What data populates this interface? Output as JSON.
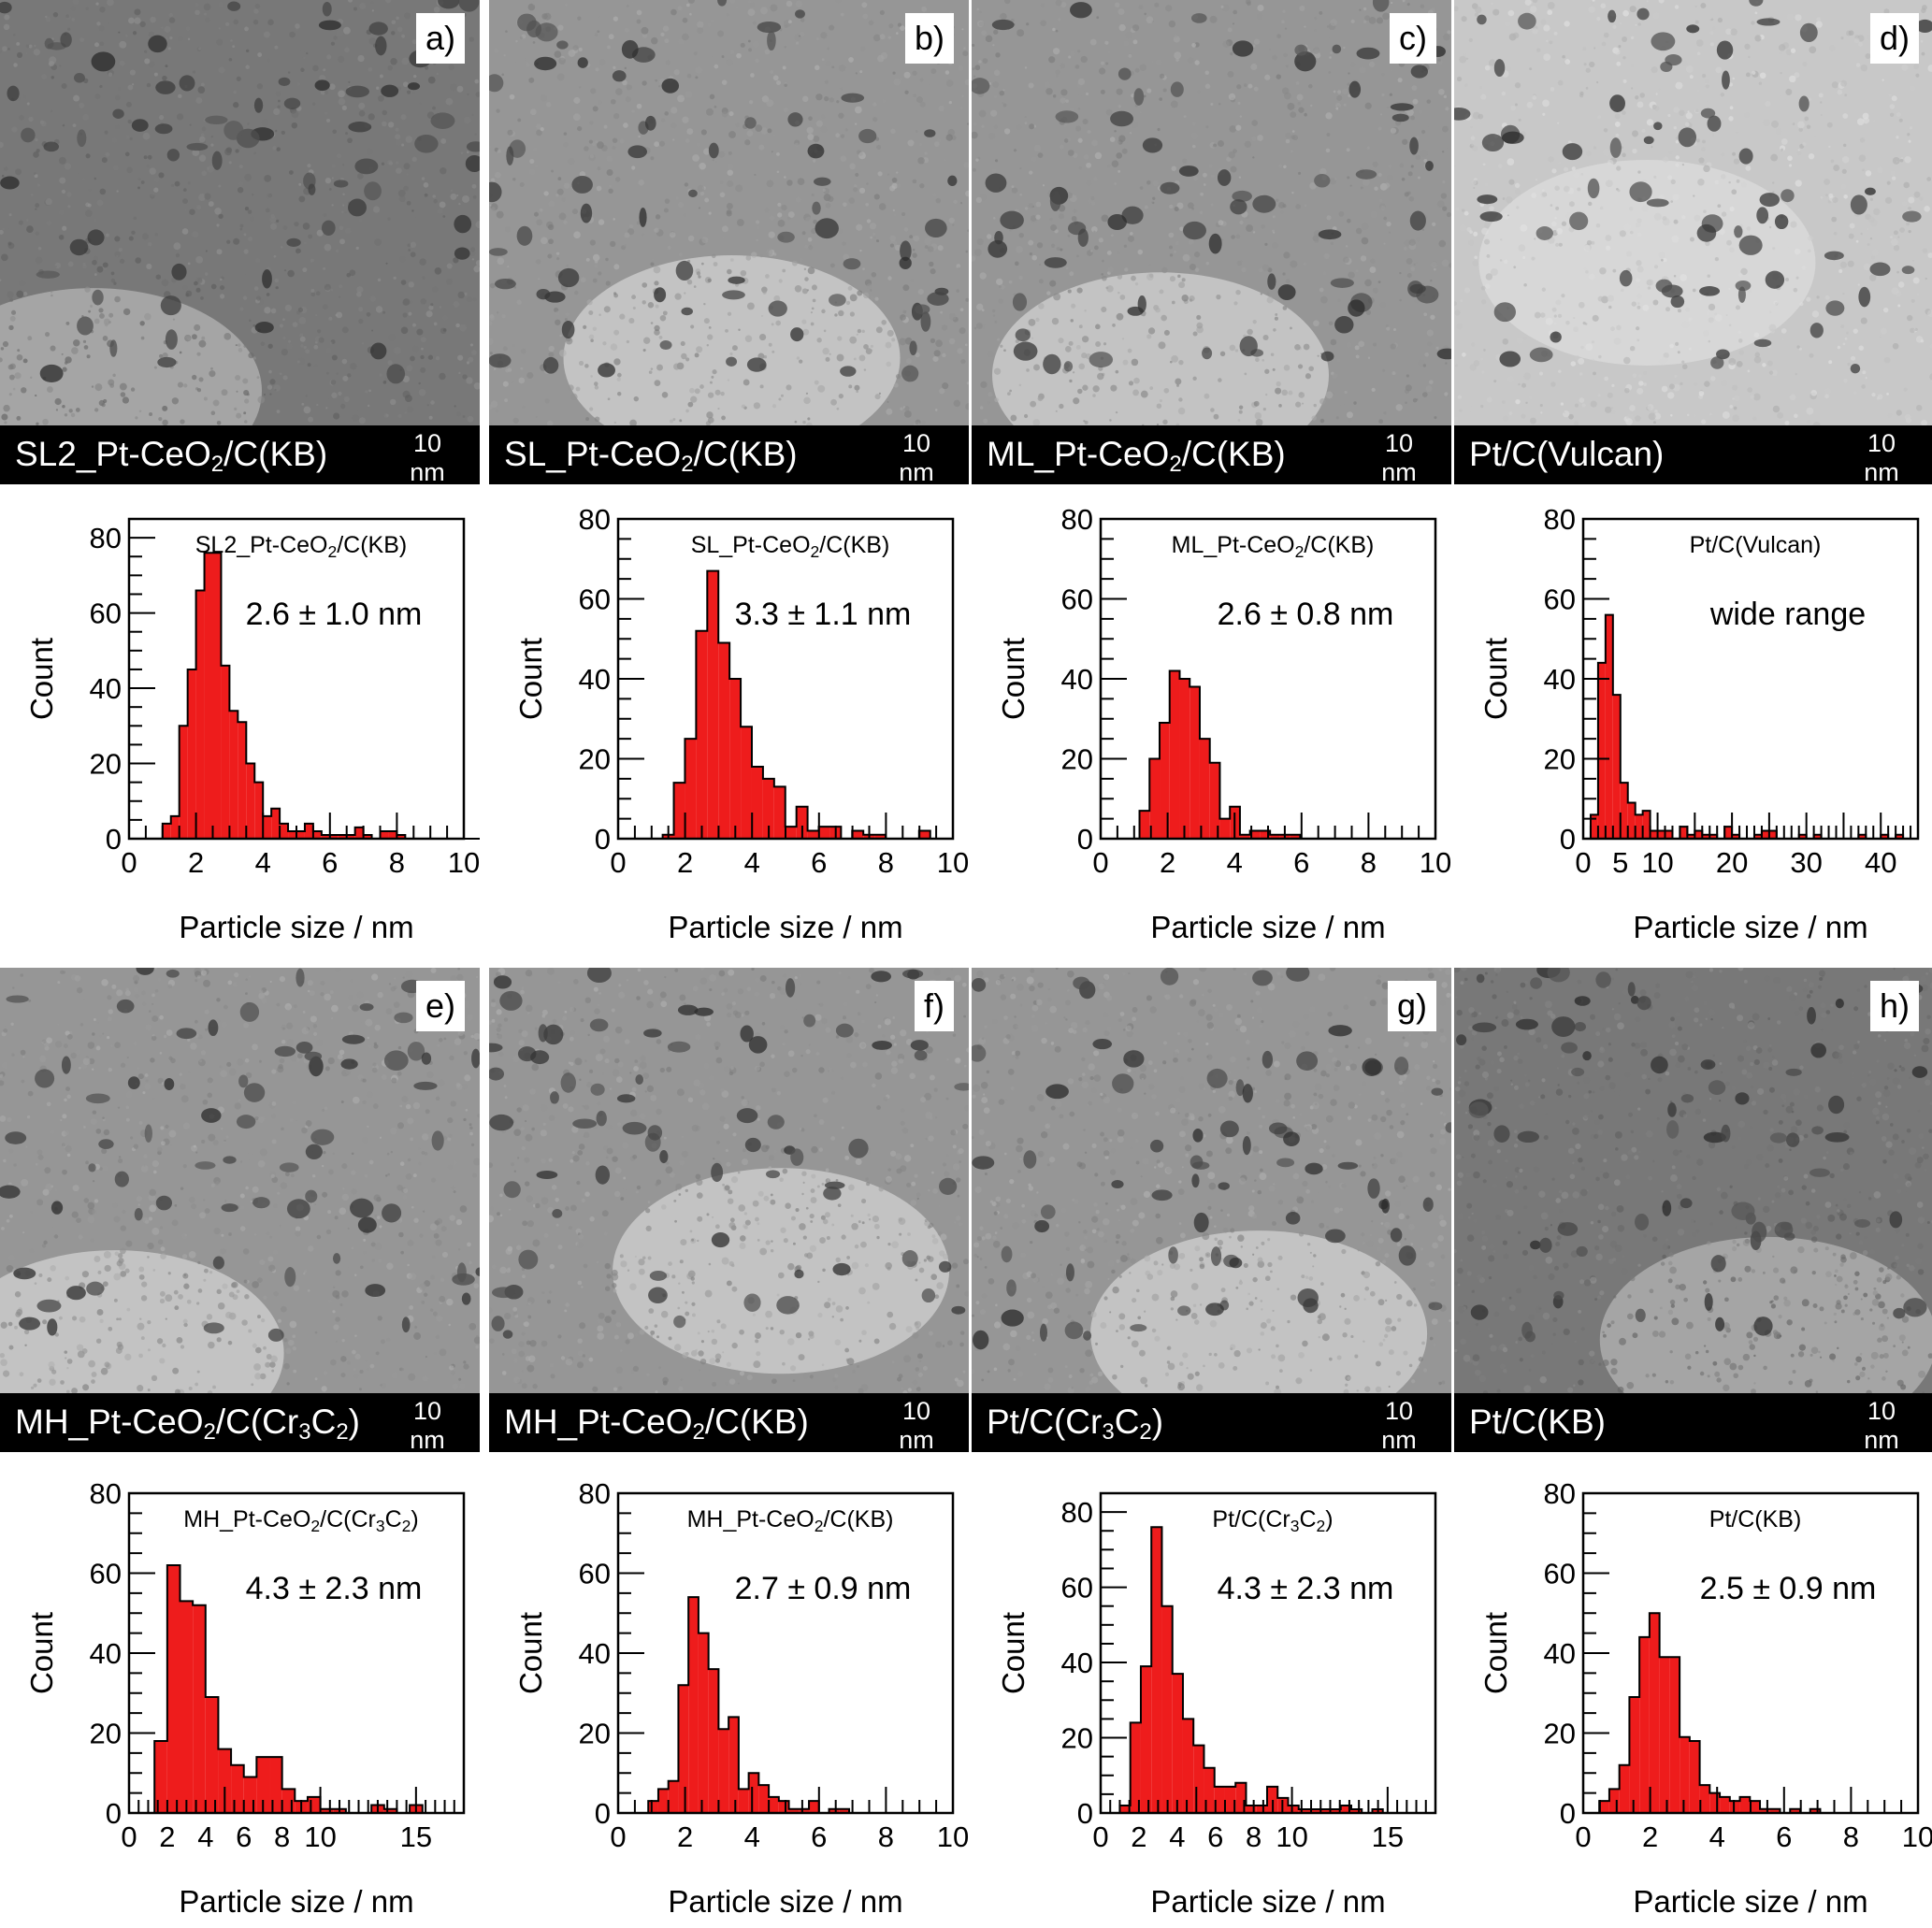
{
  "tem_panels": [
    {
      "letter": "a)",
      "label": [
        {
          "t": "SL2_Pt-CeO"
        },
        {
          "sub": "2"
        },
        {
          "t": "/C(KB)"
        }
      ],
      "scale": "10 nm",
      "tone": "dark"
    },
    {
      "letter": "b)",
      "label": [
        {
          "t": "SL_Pt-CeO"
        },
        {
          "sub": "2"
        },
        {
          "t": "/C(KB)"
        }
      ],
      "scale": "10 nm",
      "tone": "mid"
    },
    {
      "letter": "c)",
      "label": [
        {
          "t": "ML_Pt-CeO"
        },
        {
          "sub": "2"
        },
        {
          "t": "/C(KB)"
        }
      ],
      "scale": "10 nm",
      "tone": "mid"
    },
    {
      "letter": "d)",
      "label": [
        {
          "t": "Pt/C(Vulcan)"
        }
      ],
      "scale": "10 nm",
      "tone": "light"
    },
    {
      "letter": "e)",
      "label": [
        {
          "t": "MH_Pt-CeO"
        },
        {
          "sub": "2"
        },
        {
          "t": "/C(Cr"
        },
        {
          "sub": "3"
        },
        {
          "t": "C"
        },
        {
          "sub": "2"
        },
        {
          "t": ")"
        }
      ],
      "scale": "10 nm",
      "tone": "mid"
    },
    {
      "letter": "f)",
      "label": [
        {
          "t": "MH_Pt-CeO"
        },
        {
          "sub": "2"
        },
        {
          "t": "/C(KB)"
        }
      ],
      "scale": "10 nm",
      "tone": "mid"
    },
    {
      "letter": "g)",
      "label": [
        {
          "t": "Pt/C(Cr"
        },
        {
          "sub": "3"
        },
        {
          "t": "C"
        },
        {
          "sub": "2"
        },
        {
          "t": ")"
        }
      ],
      "scale": "10 nm",
      "tone": "mid"
    },
    {
      "letter": "h)",
      "label": [
        {
          "t": "Pt/C(KB)"
        }
      ],
      "scale": "10 nm",
      "tone": "dark"
    }
  ],
  "colors": {
    "bar_fill": "#ee1c1c",
    "bar_edge": "#000000",
    "tem_bar": "#000000"
  },
  "chart_data": [
    {
      "type": "bar",
      "title": [
        {
          "t": "SL2_Pt-CeO"
        },
        {
          "sub": "2"
        },
        {
          "t": "/C(KB)"
        }
      ],
      "annotation": "2.6 ± 1.0 nm",
      "xlabel": "Particle size / nm",
      "ylabel": "Count",
      "xlim": [
        0,
        10
      ],
      "ylim": [
        0,
        85
      ],
      "xticks": [
        0,
        2,
        4,
        6,
        8,
        10
      ],
      "yticks": [
        0,
        20,
        40,
        60,
        80
      ],
      "bin_start": 1.0,
      "bin_width": 0.25,
      "values": [
        4,
        6,
        30,
        45,
        66,
        76,
        76,
        46,
        34,
        31,
        20,
        15,
        6,
        8,
        4,
        2,
        2,
        4,
        2,
        1,
        1,
        1,
        1,
        3,
        1,
        0,
        2,
        2,
        1,
        0,
        0,
        0,
        0,
        0,
        0,
        0,
        0,
        0,
        0,
        0,
        1
      ]
    },
    {
      "type": "bar",
      "title": [
        {
          "t": "SL_Pt-CeO"
        },
        {
          "sub": "2"
        },
        {
          "t": "/C(KB)"
        }
      ],
      "annotation": "3.3 ± 1.1 nm",
      "xlabel": "Particle size / nm",
      "ylabel": "Count",
      "xlim": [
        0,
        10
      ],
      "ylim": [
        0,
        80
      ],
      "xticks": [
        0,
        2,
        4,
        6,
        8,
        10
      ],
      "yticks": [
        0,
        20,
        40,
        60,
        80
      ],
      "bin_start": 1.33,
      "bin_width": 0.333,
      "values": [
        1,
        14,
        25,
        52,
        67,
        49,
        40,
        28,
        18,
        15,
        13,
        3,
        8,
        2,
        3,
        3,
        0,
        2,
        1,
        1,
        0,
        0,
        0,
        2
      ]
    },
    {
      "type": "bar",
      "title": [
        {
          "t": "ML_Pt-CeO"
        },
        {
          "sub": "2"
        },
        {
          "t": "/C(KB)"
        }
      ],
      "annotation": "2.6 ± 0.8 nm",
      "xlabel": "Particle size / nm",
      "ylabel": "Count",
      "xlim": [
        0,
        10
      ],
      "ylim": [
        0,
        80
      ],
      "xticks": [
        0,
        2,
        4,
        6,
        8,
        10
      ],
      "yticks": [
        0,
        20,
        40,
        60,
        80
      ],
      "bin_start": 1.16,
      "bin_width": 0.3,
      "values": [
        7,
        20,
        29,
        42,
        40,
        38,
        25,
        19,
        5,
        8,
        1,
        2,
        2,
        1,
        1,
        1
      ]
    },
    {
      "type": "bar",
      "title": [
        {
          "t": "Pt/C(Vulcan)"
        }
      ],
      "annotation": "wide range",
      "xlabel": "Particle size / nm",
      "ylabel": "Count",
      "xlim": [
        0,
        45
      ],
      "ylim": [
        0,
        80
      ],
      "xticks": [
        0,
        5,
        10,
        20,
        30,
        40
      ],
      "yticks": [
        0,
        20,
        40,
        60,
        80
      ],
      "bin_start": 1,
      "bin_width": 1,
      "values": [
        6,
        44,
        56,
        36,
        14,
        9,
        6,
        7,
        2,
        2,
        2,
        0,
        3,
        1,
        2,
        1,
        1,
        0,
        3,
        1,
        0,
        0,
        1,
        2,
        2,
        0,
        0,
        0,
        1,
        0,
        1,
        0,
        0,
        0,
        0,
        0,
        1,
        0,
        0,
        1,
        0,
        1
      ]
    },
    {
      "type": "bar",
      "title": [
        {
          "t": "MH_Pt-CeO"
        },
        {
          "sub": "2"
        },
        {
          "t": "/C(Cr"
        },
        {
          "sub": "3"
        },
        {
          "t": "C"
        },
        {
          "sub": "2"
        },
        {
          "t": ")"
        }
      ],
      "annotation": "4.3 ± 2.3 nm",
      "xlabel": "Particle size / nm",
      "ylabel": "Count",
      "xlim": [
        0,
        17.5
      ],
      "ylim": [
        0,
        80
      ],
      "xticks": [
        0,
        2,
        4,
        6,
        8,
        10,
        15
      ],
      "yticks": [
        0,
        20,
        40,
        60,
        80
      ],
      "bin_start": 1.33,
      "bin_width": 0.667,
      "values": [
        18,
        62,
        53,
        52,
        29,
        16,
        12,
        9,
        14,
        14,
        6,
        3,
        4,
        1,
        1,
        0,
        0,
        2,
        1,
        0,
        2
      ]
    },
    {
      "type": "bar",
      "title": [
        {
          "t": "MH_Pt-CeO"
        },
        {
          "sub": "2"
        },
        {
          "t": "/C(KB)"
        }
      ],
      "annotation": "2.7 ± 0.9 nm",
      "xlabel": "Particle size / nm",
      "ylabel": "Count",
      "xlim": [
        0,
        10
      ],
      "ylim": [
        0,
        80
      ],
      "xticks": [
        0,
        2,
        4,
        6,
        8,
        10
      ],
      "yticks": [
        0,
        20,
        40,
        60,
        80
      ],
      "bin_start": 0.9,
      "bin_width": 0.3,
      "values": [
        3,
        6,
        8,
        32,
        54,
        45,
        36,
        21,
        24,
        6,
        10,
        7,
        4,
        3,
        1,
        1,
        3,
        0,
        1,
        1
      ]
    },
    {
      "type": "bar",
      "title": [
        {
          "t": "Pt/C(Cr"
        },
        {
          "sub": "3"
        },
        {
          "t": "C"
        },
        {
          "sub": "2"
        },
        {
          "t": ")"
        }
      ],
      "annotation": "4.3 ± 2.3 nm",
      "xlabel": "Particle size / nm",
      "ylabel": "Count",
      "xlim": [
        0,
        17.5
      ],
      "ylim": [
        0,
        85
      ],
      "xticks": [
        0,
        2,
        4,
        6,
        8,
        10,
        15
      ],
      "yticks": [
        0,
        20,
        40,
        60,
        80
      ],
      "bin_start": 1.0,
      "bin_width": 0.55,
      "values": [
        2,
        24,
        39,
        76,
        55,
        37,
        25,
        18,
        12,
        7,
        7,
        8,
        2,
        2,
        7,
        4,
        2,
        1,
        1,
        1,
        1,
        2,
        1,
        0,
        1
      ]
    },
    {
      "type": "bar",
      "title": [
        {
          "t": "Pt/C(KB)"
        }
      ],
      "annotation": "2.5 ± 0.9 nm",
      "xlabel": "Particle size / nm",
      "ylabel": "Count",
      "xlim": [
        0,
        10
      ],
      "ylim": [
        0,
        80
      ],
      "xticks": [
        0,
        2,
        4,
        6,
        8,
        10
      ],
      "yticks": [
        0,
        20,
        40,
        60,
        80
      ],
      "bin_start": 0.48,
      "bin_width": 0.3,
      "values": [
        3,
        6,
        12,
        29,
        44,
        50,
        39,
        39,
        19,
        18,
        7,
        5,
        4,
        3,
        4,
        3,
        1,
        1,
        0,
        1,
        0,
        1
      ]
    }
  ]
}
